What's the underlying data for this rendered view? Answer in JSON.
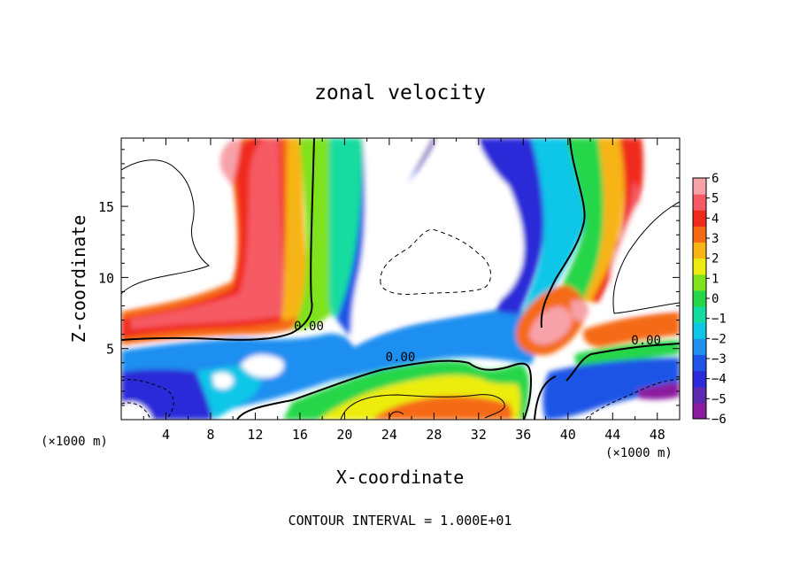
{
  "chart_data": {
    "type": "heatmap",
    "title": "zonal velocity",
    "xlabel": "X-coordinate",
    "ylabel": "Z-coordinate",
    "x_unit": "(×1000 m)",
    "y_unit": "(×1000 m)",
    "xlim": [
      0,
      50
    ],
    "ylim": [
      0,
      19.8
    ],
    "x_ticks": [
      4,
      8,
      12,
      16,
      20,
      24,
      28,
      32,
      36,
      40,
      44,
      48
    ],
    "y_ticks": [
      5,
      10,
      15
    ],
    "colorbar": {
      "range": [
        -6,
        6
      ],
      "ticks": [
        6,
        5,
        4,
        3,
        2,
        1,
        0,
        -1,
        -2,
        -3,
        -4,
        -5,
        -6
      ],
      "colors": [
        "#8b1a9e",
        "#5a2ab0",
        "#2a2ad8",
        "#1f55e6",
        "#1f8ff0",
        "#10c6e8",
        "#12dca0",
        "#25d64a",
        "#7ee21c",
        "#ecec10",
        "#f7b414",
        "#f56a12",
        "#f02a1a",
        "#f65a64",
        "#f7a2a8"
      ]
    },
    "contour_labels": [
      {
        "text": "0.00",
        "x": 16.8,
        "y": 6.3
      },
      {
        "text": "0.00",
        "x": 25.0,
        "y": 4.1
      },
      {
        "text": "0.00",
        "x": 47.0,
        "y": 5.3
      }
    ],
    "footer": "CONTOUR INTERVAL = 1.000E+01"
  }
}
